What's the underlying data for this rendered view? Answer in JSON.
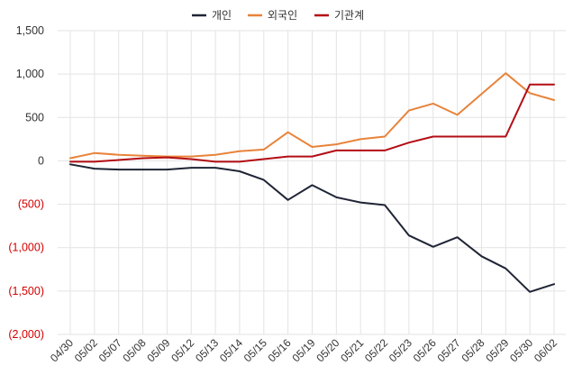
{
  "chart_data": {
    "type": "line",
    "title": "",
    "xlabel": "",
    "ylabel": "",
    "ylim": [
      -2000,
      1500
    ],
    "yticks": [
      {
        "value": 1500,
        "label": "1,500"
      },
      {
        "value": 1000,
        "label": "1,000"
      },
      {
        "value": 500,
        "label": "500"
      },
      {
        "value": 0,
        "label": "0"
      },
      {
        "value": -500,
        "label": "(500)"
      },
      {
        "value": -1000,
        "label": "(1,000)"
      },
      {
        "value": -1500,
        "label": "(1,500)"
      },
      {
        "value": -2000,
        "label": "(2,000)"
      }
    ],
    "negative_tick_color": "#d40000",
    "grid": true,
    "legend_position": "top-center",
    "categories": [
      "04/30",
      "05/02",
      "05/07",
      "05/08",
      "05/09",
      "05/12",
      "05/13",
      "05/14",
      "05/15",
      "05/16",
      "05/19",
      "05/20",
      "05/21",
      "05/22",
      "05/23",
      "05/26",
      "05/27",
      "05/28",
      "05/29",
      "05/30",
      "06/02"
    ],
    "series": [
      {
        "name": "개인",
        "color": "#1f2535",
        "values": [
          -40,
          -90,
          -100,
          -100,
          -100,
          -80,
          -80,
          -120,
          -220,
          -450,
          -280,
          -420,
          -480,
          -510,
          -860,
          -990,
          -880,
          -1100,
          -1240,
          -1510,
          -1420
        ]
      },
      {
        "name": "외국인",
        "color": "#e8833a",
        "values": [
          30,
          90,
          70,
          60,
          50,
          50,
          70,
          110,
          130,
          330,
          160,
          190,
          250,
          280,
          580,
          660,
          530,
          770,
          1010,
          780,
          700
        ]
      },
      {
        "name": "기관계",
        "color": "#b30d14",
        "values": [
          -10,
          -10,
          10,
          30,
          40,
          20,
          -10,
          -10,
          20,
          50,
          50,
          120,
          120,
          120,
          210,
          280,
          280,
          280,
          280,
          880,
          880
        ]
      }
    ]
  }
}
